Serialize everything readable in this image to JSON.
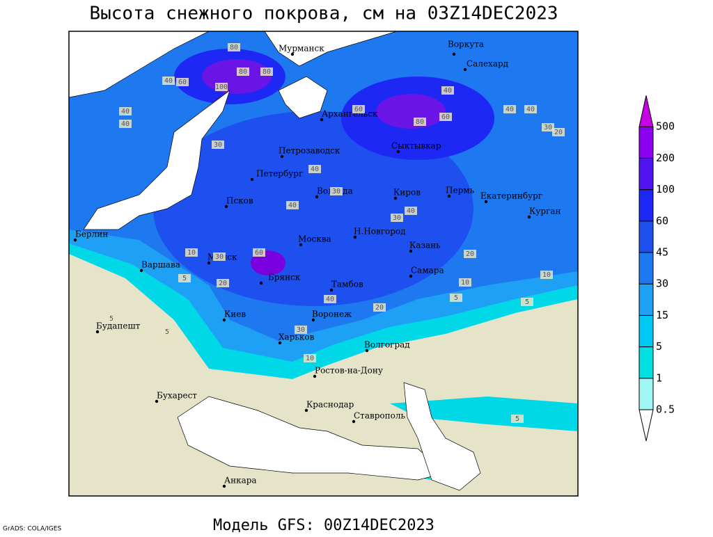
{
  "title": "Высота снежного покрова, см на 03Z14DEC2023",
  "footer": "Модель GFS: 00Z14DEC2023",
  "credit": "GrADS: COLA/IGES",
  "cities": [
    "Мурманск",
    "Воркута",
    "Салехард",
    "Архангельск",
    "Петрозаводск",
    "Сыктывкар",
    "Петербург",
    "Вологда",
    "Киров",
    "Пермь",
    "Екатеринбург",
    "Курган",
    "Псков",
    "Берлин",
    "Москва",
    "Н.Новгород",
    "Казань",
    "Минск",
    "Варшава",
    "Самара",
    "Брянск",
    "Тамбов",
    "Киев",
    "Воронеж",
    "Будапешт",
    "Харьков",
    "Волгоград",
    "Ростов-на-Дону",
    "Бухарест",
    "Краснодар",
    "Ставрополь",
    "Анкара"
  ],
  "contour_labels": [
    80,
    80,
    80,
    100,
    60,
    40,
    40,
    40,
    60,
    80,
    60,
    40,
    40,
    40,
    30,
    30,
    20,
    30,
    40,
    40,
    30,
    40,
    60,
    10,
    30,
    20,
    5,
    20,
    10,
    5,
    30,
    40,
    20,
    10,
    5,
    5,
    5,
    5,
    10
  ],
  "legend": {
    "levels": [
      0.5,
      1,
      5,
      15,
      30,
      45,
      60,
      100,
      200,
      500
    ],
    "colors": [
      "#ffffff",
      "#a0f5f5",
      "#00e0e0",
      "#00c8f5",
      "#1ea0f5",
      "#1e78f0",
      "#1e50f0",
      "#1e28f5",
      "#5014f0",
      "#8c00f0",
      "#c800e6"
    ]
  }
}
